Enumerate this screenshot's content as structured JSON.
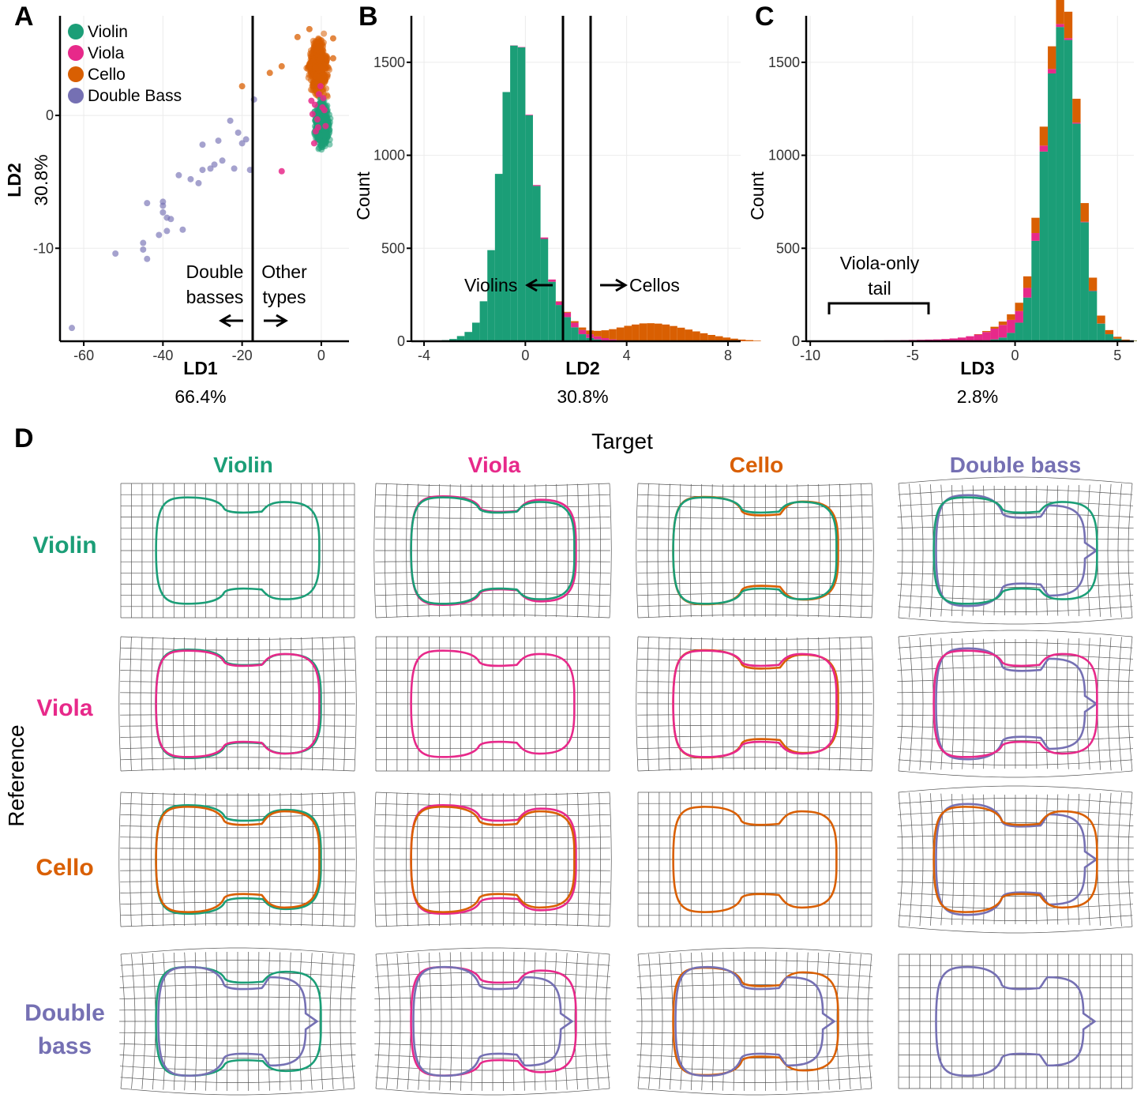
{
  "colors": {
    "violin": "#1b9e77",
    "viola": "#e7298a",
    "cello": "#d95f02",
    "bass": "#7570b3",
    "axis": "#000000",
    "grid": "#ebebeb",
    "warp_grid": "#555555"
  },
  "panels": {
    "a": "A",
    "b": "B",
    "c": "C",
    "d": "D"
  },
  "chart_data": [
    {
      "panel": "A",
      "type": "scatter",
      "xlabel": "LD1",
      "xlabel_pct": "66.4%",
      "ylabel": "LD2",
      "ylabel_pct": "30.8%",
      "xlim": [
        -66,
        7
      ],
      "ylim": [
        -17,
        7.5
      ],
      "xticks": [
        -60,
        -40,
        -20,
        0
      ],
      "yticks": [
        0,
        -10
      ],
      "legend": {
        "position": "top-left",
        "entries": [
          {
            "label": "Violin",
            "key": "violin"
          },
          {
            "label": "Viola",
            "key": "viola"
          },
          {
            "label": "Cello",
            "key": "cello"
          },
          {
            "label": "Double Bass",
            "key": "bass"
          }
        ]
      },
      "vline_x": -16.5,
      "annotations": {
        "left_line1": "Double",
        "left_line2": "basses",
        "right_line1": "Other",
        "right_line2": "types"
      },
      "series": [
        {
          "name": "Double Bass",
          "key": "bass",
          "points": [
            [
              -63,
              -16
            ],
            [
              -52,
              -10.4
            ],
            [
              -45,
              -10.1
            ],
            [
              -45,
              -9.6
            ],
            [
              -44,
              -6.6
            ],
            [
              -44,
              -10.8
            ],
            [
              -41,
              -9.0
            ],
            [
              -40,
              -6.8
            ],
            [
              -40,
              -7.3
            ],
            [
              -40,
              -6.5
            ],
            [
              -39,
              -7.7
            ],
            [
              -39,
              -8.7
            ],
            [
              -38,
              -7.8
            ],
            [
              -36,
              -4.5
            ],
            [
              -35,
              -8.6
            ],
            [
              -33,
              -4.8
            ],
            [
              -31,
              -5.1
            ],
            [
              -30,
              -4.1
            ],
            [
              -30,
              -2.2
            ],
            [
              -28,
              -4.0
            ],
            [
              -27,
              -3.7
            ],
            [
              -26,
              -1.9
            ],
            [
              -25,
              -3.4
            ],
            [
              -23,
              -0.4
            ],
            [
              -22,
              -4.0
            ],
            [
              -21,
              -1.3
            ],
            [
              -20,
              -2.1
            ],
            [
              -19,
              -1.8
            ],
            [
              -18,
              -4.1
            ],
            [
              -17,
              1.2
            ]
          ]
        },
        {
          "name": "Cello",
          "key": "cello",
          "center": [
            -0.8,
            3.7
          ],
          "spread": [
            1.4,
            1.2
          ],
          "count": 700,
          "extra_points": [
            [
              -20,
              2.2
            ],
            [
              -13,
              3.2
            ],
            [
              -10,
              3.7
            ],
            [
              -6,
              5.9
            ],
            [
              -3,
              6.5
            ],
            [
              3,
              4.3
            ],
            [
              3,
              5.8
            ]
          ]
        },
        {
          "name": "Violin",
          "key": "violin",
          "center": [
            0.2,
            -0.6
          ],
          "spread": [
            1.0,
            0.95
          ],
          "count": 900
        },
        {
          "name": "Viola",
          "key": "viola",
          "points": [
            [
              -1.6,
              0.8
            ],
            [
              -0.6,
              1.6
            ],
            [
              -1.0,
              -0.3
            ],
            [
              0.8,
              0.4
            ],
            [
              -1.4,
              -1.2
            ],
            [
              0.5,
              1.3
            ],
            [
              -2.2,
              0.1
            ],
            [
              1.1,
              -0.8
            ],
            [
              -0.2,
              2.2
            ],
            [
              0.3,
              0.6
            ],
            [
              -1.8,
              -2.1
            ],
            [
              -0.8,
              -0.9
            ],
            [
              -10,
              -4.2
            ],
            [
              -2.5,
              1.1
            ]
          ]
        }
      ]
    },
    {
      "panel": "B",
      "type": "bar",
      "stacked": true,
      "xlabel": "LD2",
      "xlabel_pct": "30.8%",
      "ylabel": "Count",
      "xlim": [
        -4.5,
        8.5
      ],
      "ylim": [
        0,
        1750
      ],
      "xticks": [
        -4,
        0,
        4,
        8
      ],
      "yticks": [
        0,
        500,
        1000,
        1500
      ],
      "bin_start": -3.6,
      "bin_width": 0.3,
      "vlines": [
        1.4,
        2.5
      ],
      "annotations": {
        "left": "Violins",
        "right": "Cellos"
      },
      "series": [
        {
          "name": "Violin",
          "key": "violin",
          "values": [
            3,
            6,
            12,
            28,
            50,
            100,
            215,
            490,
            900,
            1340,
            1590,
            1580,
            1215,
            835,
            550,
            320,
            195,
            130,
            75,
            38,
            18,
            10,
            5,
            2,
            1,
            0,
            0,
            0,
            0,
            0,
            0,
            0,
            0,
            0,
            0,
            0,
            0,
            0,
            0,
            0,
            0,
            0,
            0
          ]
        },
        {
          "name": "Viola",
          "key": "viola",
          "values": [
            0,
            0,
            0,
            0,
            0,
            0,
            0,
            0,
            0,
            0,
            1,
            2,
            3,
            5,
            8,
            12,
            18,
            24,
            25,
            23,
            20,
            16,
            12,
            8,
            5,
            3,
            2,
            1,
            0,
            0,
            0,
            0,
            0,
            0,
            0,
            0,
            0,
            0,
            0,
            0,
            0,
            0,
            0
          ]
        },
        {
          "name": "Cello",
          "key": "cello",
          "values": [
            0,
            0,
            0,
            0,
            0,
            0,
            0,
            0,
            0,
            0,
            0,
            0,
            0,
            0,
            0,
            0,
            2,
            4,
            8,
            13,
            20,
            30,
            42,
            55,
            68,
            80,
            88,
            95,
            97,
            95,
            90,
            82,
            73,
            63,
            53,
            43,
            34,
            27,
            20,
            14,
            9,
            6,
            3
          ]
        }
      ]
    },
    {
      "panel": "C",
      "type": "bar",
      "stacked": true,
      "xlabel": "LD3",
      "xlabel_pct": "2.8%",
      "ylabel": "Count",
      "xlim": [
        -10.2,
        5.8
      ],
      "ylim": [
        0,
        1750
      ],
      "xticks": [
        -10,
        -5,
        0,
        5
      ],
      "yticks": [
        0,
        500,
        1000,
        1500
      ],
      "bin_start": -9.6,
      "bin_width": 0.4,
      "bracket": {
        "from": -9.2,
        "to": -4.4
      },
      "annotations": {
        "line1": "Viola-only",
        "line2": "tail"
      },
      "series": [
        {
          "name": "Violin",
          "key": "violin",
          "values": [
            0,
            0,
            0,
            0,
            0,
            0,
            0,
            0,
            0,
            0,
            0,
            0,
            0,
            0,
            0,
            0,
            0,
            1,
            2,
            3,
            5,
            10,
            20,
            45,
            100,
            235,
            540,
            1020,
            1440,
            1690,
            1620,
            1170,
            640,
            270,
            95,
            38,
            14,
            5,
            2,
            0,
            0,
            0,
            0,
            0
          ]
        },
        {
          "name": "Viola",
          "key": "viola",
          "values": [
            2,
            2,
            2,
            3,
            3,
            3,
            4,
            4,
            5,
            5,
            6,
            7,
            8,
            9,
            10,
            12,
            15,
            19,
            25,
            33,
            45,
            58,
            68,
            70,
            62,
            52,
            42,
            32,
            24,
            16,
            10,
            6,
            3,
            2,
            1,
            0,
            0,
            0,
            0,
            0,
            0,
            0,
            0,
            0
          ]
        },
        {
          "name": "Cello",
          "key": "cello",
          "values": [
            0,
            0,
            0,
            0,
            0,
            0,
            0,
            0,
            0,
            0,
            0,
            0,
            0,
            0,
            0,
            0,
            0,
            0,
            0,
            2,
            5,
            10,
            18,
            30,
            45,
            62,
            82,
            102,
            122,
            138,
            142,
            128,
            100,
            70,
            42,
            22,
            10,
            4,
            2,
            1,
            0,
            0,
            0,
            0
          ]
        }
      ]
    }
  ],
  "panel_d": {
    "title": "Target",
    "side_label": "Reference",
    "columns": [
      {
        "label": "Violin",
        "key": "violin"
      },
      {
        "label": "Viola",
        "key": "viola"
      },
      {
        "label": "Cello",
        "key": "cello"
      },
      {
        "label": "Double bass",
        "key": "bass"
      }
    ],
    "rows": [
      {
        "label_lines": [
          "Violin"
        ],
        "key": "violin"
      },
      {
        "label_lines": [
          "Viola"
        ],
        "key": "viola"
      },
      {
        "label_lines": [
          "Cello"
        ],
        "key": "cello"
      },
      {
        "label_lines": [
          "Double",
          "bass"
        ],
        "key": "bass"
      }
    ]
  }
}
